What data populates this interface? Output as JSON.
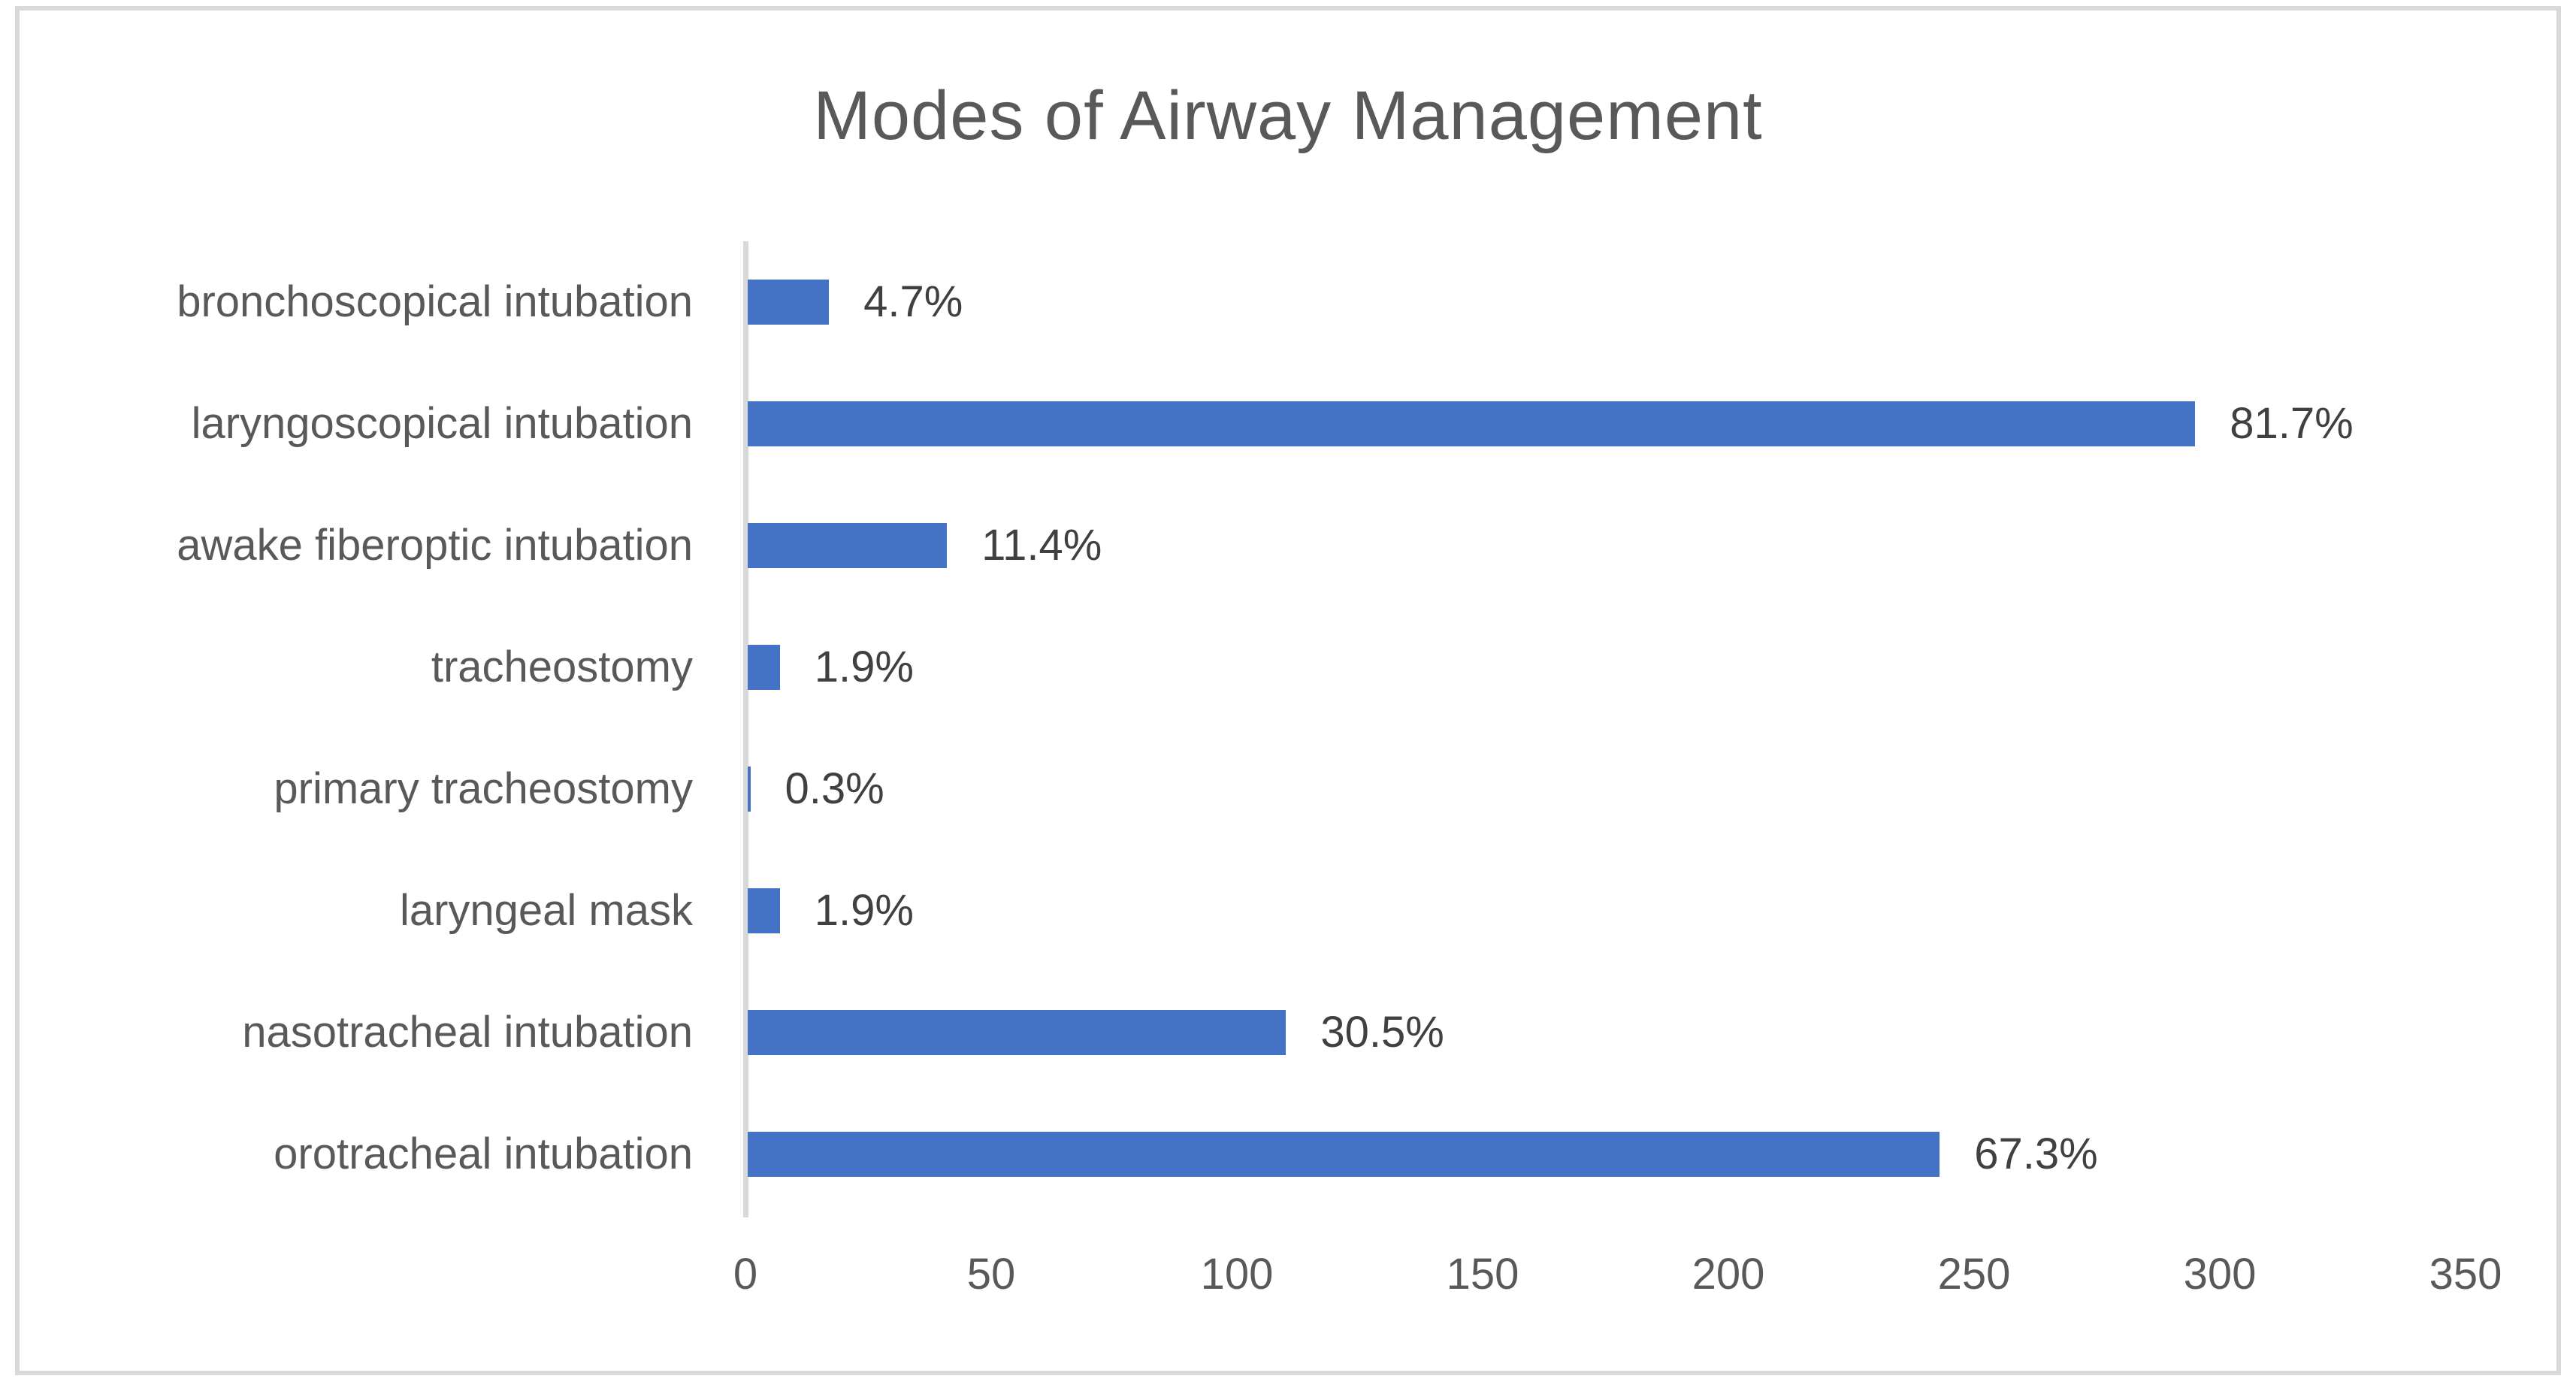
{
  "chart_data": {
    "type": "bar",
    "orientation": "horizontal",
    "title": "Modes of Airway Management",
    "categories": [
      "bronchoscopical intubation",
      "laryngoscopical intubation",
      "awake fiberoptic intubation",
      "tracheostomy",
      "primary tracheostomy",
      "laryngeal mask",
      "nasotracheal intubation",
      "orotracheal intubation"
    ],
    "values": [
      17,
      295,
      41,
      7,
      1,
      7,
      110,
      243
    ],
    "data_labels": [
      "4.7%",
      "81.7%",
      "11.4%",
      "1.9%",
      "0.3%",
      "1.9%",
      "30.5%",
      "67.3%"
    ],
    "xlabel": "",
    "ylabel": "",
    "xlim": [
      0,
      350
    ],
    "xticks": [
      "0",
      "50",
      "100",
      "150",
      "200",
      "250",
      "300",
      "350"
    ],
    "grid": false,
    "legend_position": "none",
    "colors": {
      "bar": "#4472C4",
      "axis_line": "#D9D9D9",
      "frame_border": "#D9D9D9",
      "title_text": "#595959",
      "category_text": "#595959",
      "tick_text": "#595959",
      "data_label_text": "#404040",
      "background": "#FFFFFF"
    }
  }
}
